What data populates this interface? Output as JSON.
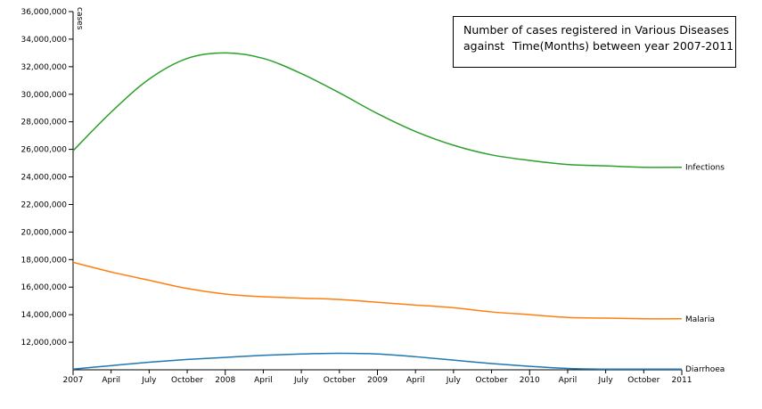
{
  "chart_data": {
    "type": "line",
    "title_line1": "Number of cases registered in Various Diseases",
    "title_line2a": "against",
    "title_line2b": "Time(Months) between year 2007-2011",
    "ylabel": "cases",
    "xlabel": "",
    "ylim": [
      10000000,
      36000000
    ],
    "grid": false,
    "x_ticks": [
      "2007",
      "April",
      "July",
      "October",
      "2008",
      "April",
      "July",
      "October",
      "2009",
      "April",
      "July",
      "October",
      "2010",
      "April",
      "July",
      "October",
      "2011"
    ],
    "y_ticks": [
      "12,000,000",
      "14,000,000",
      "16,000,000",
      "18,000,000",
      "20,000,000",
      "22,000,000",
      "24,000,000",
      "26,000,000",
      "28,000,000",
      "30,000,000",
      "32,000,000",
      "34,000,000",
      "36,000,000"
    ],
    "y_tick_values": [
      12000000,
      14000000,
      16000000,
      18000000,
      20000000,
      22000000,
      24000000,
      26000000,
      28000000,
      30000000,
      32000000,
      34000000,
      36000000
    ],
    "x": [
      "2007-01",
      "2007-04",
      "2007-07",
      "2007-10",
      "2008-01",
      "2008-04",
      "2008-07",
      "2008-10",
      "2009-01",
      "2009-04",
      "2009-07",
      "2009-10",
      "2010-01",
      "2010-04",
      "2010-07",
      "2010-10",
      "2011-01"
    ],
    "series": [
      {
        "name": "Infections",
        "color": "#2ca02c",
        "values": [
          25900000,
          28700000,
          31100000,
          32600000,
          33000000,
          32600000,
          31500000,
          30100000,
          28600000,
          27300000,
          26300000,
          25600000,
          25200000,
          24900000,
          24800000,
          24700000,
          24700000
        ]
      },
      {
        "name": "Malaria",
        "color": "#ff7f0e",
        "values": [
          17800000,
          17100000,
          16500000,
          15900000,
          15500000,
          15300000,
          15200000,
          15100000,
          14900000,
          14700000,
          14500000,
          14200000,
          14000000,
          13800000,
          13750000,
          13700000,
          13700000
        ]
      },
      {
        "name": "Diarrhoea",
        "color": "#1f77b4",
        "values": [
          10050000,
          10300000,
          10550000,
          10750000,
          10900000,
          11050000,
          11150000,
          11200000,
          11150000,
          10950000,
          10700000,
          10450000,
          10250000,
          10100000,
          10050000,
          10050000,
          10050000
        ]
      }
    ]
  }
}
